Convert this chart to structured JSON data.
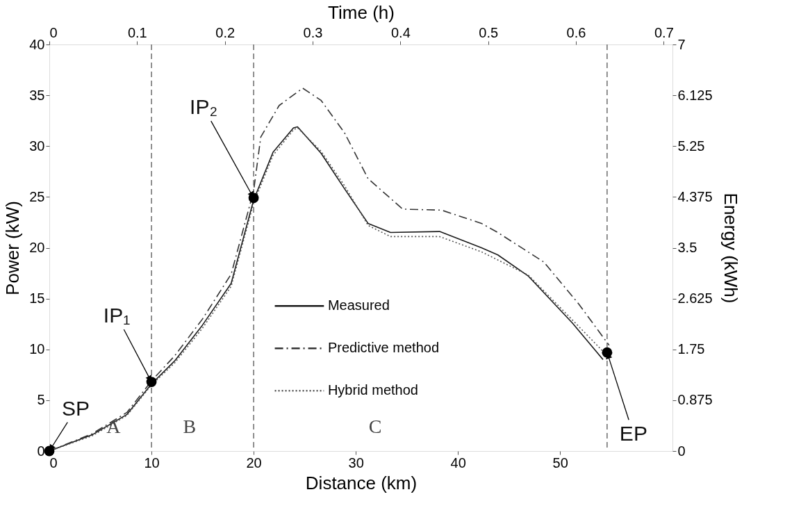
{
  "chart_data": {
    "type": "line",
    "xlabel": "Distance (km)",
    "ylabel": "Power (kW)",
    "y2label": "Energy (kWh)",
    "x2label": "Time (h)",
    "xlim": [
      0,
      61
    ],
    "xticks": [
      0,
      10,
      20,
      30,
      40,
      50
    ],
    "ylim": [
      0,
      40
    ],
    "yticks": [
      0,
      5,
      10,
      15,
      20,
      25,
      30,
      35,
      40
    ],
    "x2lim": [
      0,
      0.71
    ],
    "x2ticks": [
      0,
      0.1,
      0.2,
      0.3,
      0.4,
      0.5,
      0.6,
      0.7
    ],
    "y2lim": [
      0,
      7
    ],
    "y2ticks": [
      0,
      0.875,
      1.75,
      2.625,
      3.5,
      4.375,
      5.25,
      6.125,
      7
    ],
    "grid": false,
    "legend": "center",
    "series": [
      {
        "name": "Measured",
        "color": "#1a1a1a",
        "line_style": "solid",
        "x": [
          0,
          4.2,
          7.6,
          10,
          12.3,
          15,
          17.8,
          20,
          21.9,
          23.9,
          24.3,
          26.6,
          28.9,
          31.2,
          33.4,
          38.2,
          42.3,
          43.9,
          46.9,
          51.2,
          54.2
        ],
        "values": [
          0,
          1.6,
          3.6,
          6.6,
          8.9,
          12.4,
          16.5,
          24.7,
          29.4,
          31.8,
          31.9,
          29.3,
          25.8,
          22.4,
          21.5,
          21.6,
          20,
          19.3,
          17.2,
          12.6,
          9.0
        ]
      },
      {
        "name": "Predictive method",
        "color": "#333333",
        "line_style": "dashdot",
        "x": [
          0,
          4.2,
          7.6,
          10,
          12.3,
          15,
          17.8,
          20,
          20.7,
          22.5,
          24.8,
          26.6,
          28.9,
          31.2,
          34.6,
          38.4,
          42.3,
          43.9,
          48.4,
          51.8,
          54.8
        ],
        "values": [
          0,
          1.7,
          3.8,
          6.9,
          9.4,
          13,
          17.4,
          25.6,
          30.9,
          34,
          35.7,
          34.5,
          31.3,
          26.8,
          23.8,
          23.7,
          22.4,
          21.5,
          18.6,
          14.5,
          10.4
        ]
      },
      {
        "name": "Hybrid method",
        "color": "#555555",
        "line_style": "dotted",
        "x": [
          0,
          4.2,
          7.6,
          10,
          12.3,
          15,
          17.8,
          20,
          21.9,
          23.9,
          24.3,
          26.6,
          28.9,
          31.2,
          33.4,
          38.2,
          42.3,
          43.9,
          46.9,
          51.2,
          54.4
        ],
        "values": [
          0,
          1.5,
          3.5,
          6.5,
          8.7,
          12.1,
          16.2,
          24.4,
          29.1,
          31.6,
          31.8,
          29.5,
          26.1,
          22.2,
          21.1,
          21.1,
          19.6,
          18.8,
          17.3,
          12.9,
          9.6
        ]
      },
      {
        "type": "scatter",
        "color": "#000000",
        "marker": "circle",
        "x": [
          0,
          10,
          20,
          54.6
        ],
        "values": [
          0,
          6.8,
          24.9,
          9.7
        ]
      }
    ],
    "ref_lines": [
      {
        "axis": "x",
        "value": 10,
        "color": "#555555",
        "line_style": "dashed"
      },
      {
        "axis": "x",
        "value": 20,
        "color": "#555555",
        "line_style": "dashed"
      },
      {
        "axis": "x",
        "value": 54.6,
        "color": "#555555",
        "line_style": "dashed"
      }
    ],
    "annotations": [
      "A",
      "B",
      "C",
      {
        "text": "SP",
        "x": 0,
        "y": 0
      },
      {
        "text": "IP₁",
        "x": 10,
        "y": 6.8
      },
      {
        "text": "IP₂",
        "x": 20,
        "y": 24.9
      },
      {
        "text": "EP",
        "x": 54.6,
        "y": 9.7
      }
    ]
  }
}
